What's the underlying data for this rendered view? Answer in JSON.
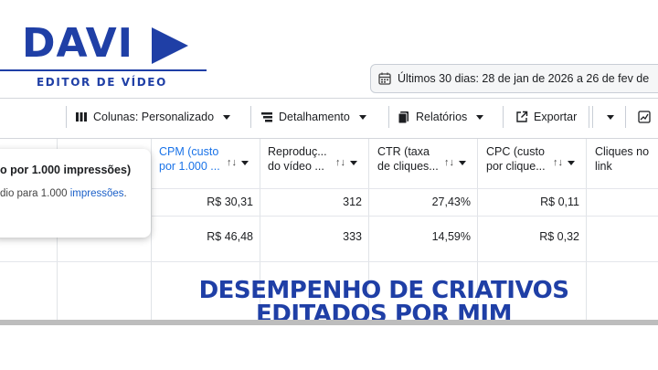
{
  "logo": {
    "word": "DAVI",
    "subtitle": "EDITOR DE VÍDEO",
    "color": "#1f3fa6"
  },
  "date_range": {
    "icon": "calendar-icon",
    "label": "Últimos 30 dias: 28 de jan de 2026 a 26 de fev de"
  },
  "toolbar": {
    "columns_icon": "columns-icon",
    "columns_label": "Colunas: Personalizado",
    "breakdown_icon": "breakdown-icon",
    "breakdown_label": "Detalhamento",
    "reports_icon": "reports-icon",
    "reports_label": "Relatórios",
    "export_icon": "export-icon",
    "export_label": "Exportar",
    "chart_icon": "chart-icon"
  },
  "table": {
    "columns": [
      {
        "line1": "CPM (custo",
        "line2": "por 1.000 ...",
        "active": true
      },
      {
        "line1": "Reproduç...",
        "line2": "do vídeo ..."
      },
      {
        "line1": "CTR (taxa",
        "line2": "de cliques..."
      },
      {
        "line1": "CPC (custo",
        "line2": "por clique..."
      },
      {
        "line1": "Cliques no",
        "line2": "link"
      }
    ],
    "rows": [
      {
        "cpm": "R$ 30,31",
        "plays": "312",
        "ctr": "27,43%",
        "cpc": "R$ 0,11"
      },
      {
        "cpm": "R$ 46,48",
        "plays": "333",
        "ctr": "14,59%",
        "cpc": "R$ 0,32"
      }
    ]
  },
  "tooltip": {
    "title": "o por 1.000 impressões)",
    "desc_prefix": "dio para 1.000 ",
    "desc_link": "impressões",
    "desc_suffix": "."
  },
  "headline": {
    "line1": "DESEMPENHO DE CRIATIVOS",
    "line2": "EDITADOS POR MIM"
  },
  "colors": {
    "brand": "#1f3fa6",
    "active_header": "#1a73e8",
    "bottom_bar": "#bdbdbd"
  }
}
